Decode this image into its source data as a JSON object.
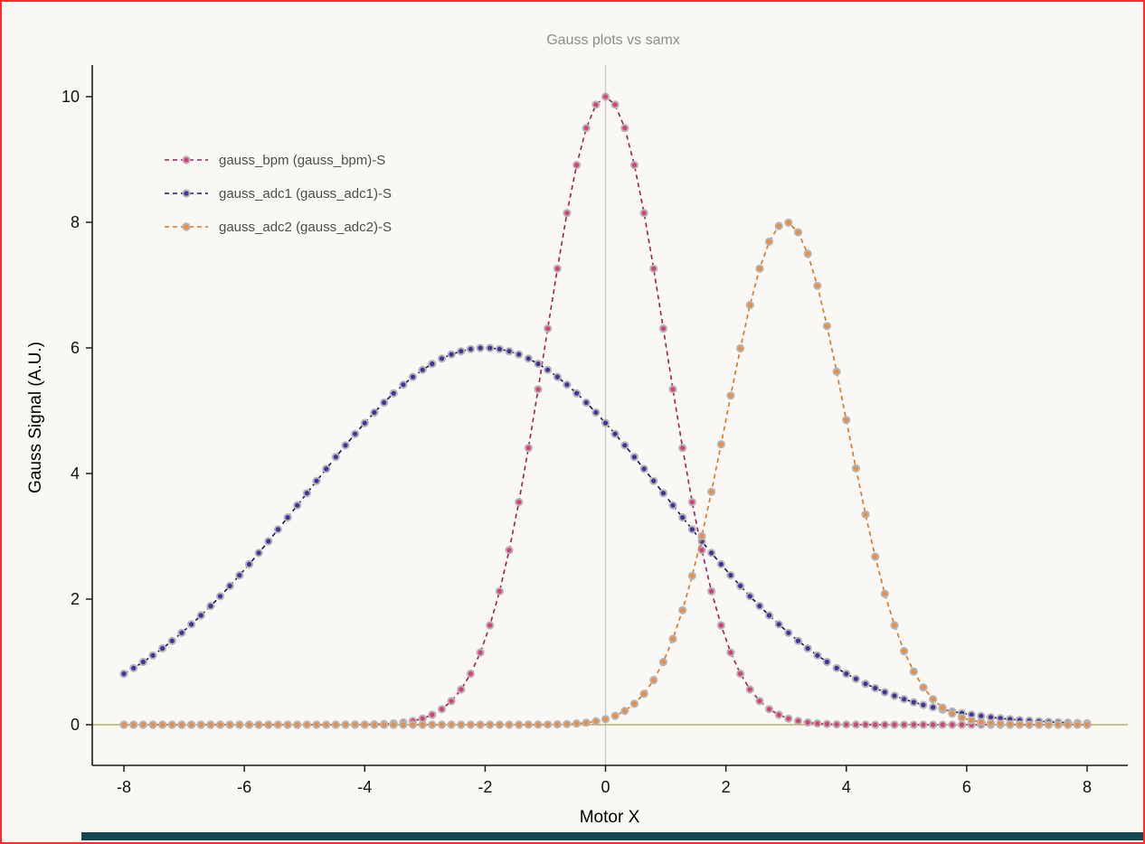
{
  "window": {
    "border_color": "#ff2d2d",
    "background": "#faf8f4",
    "bottom_bar_color": "#134850"
  },
  "chart_data": {
    "type": "scatter",
    "title": "Gauss plots vs samx",
    "xlabel": "Motor X",
    "ylabel": "Gauss Signal (A.U.)",
    "x_range": [
      -8,
      8
    ],
    "n_points": 101,
    "x_ticks": [
      -8,
      -6,
      -4,
      -2,
      0,
      2,
      4,
      6,
      8
    ],
    "y_ticks": [
      0,
      2,
      4,
      6,
      8,
      10
    ],
    "ylim": [
      0,
      10
    ],
    "grid": {
      "vline_x": 0,
      "vline_color": "#cccccc",
      "hline_y": 0,
      "hline_color": "#b3b360"
    },
    "axis_color": "#1a1a1a",
    "tick_label_color": "#111111",
    "title_color": "#8c8c8c",
    "legend_position": "upper-left",
    "legend_text_color": "#4d4d4d",
    "marker_edge_color": "#b5b5b5",
    "series": [
      {
        "name": "gauss_bpm (gauss_bpm)-S",
        "center": 0,
        "sigma": 1,
        "amplitude": 10,
        "marker_color": "#dd3d77",
        "line_color": "#a11a5b"
      },
      {
        "name": "gauss_adc1 (gauss_adc1)-S",
        "center": -2,
        "sigma": 3,
        "amplitude": 6,
        "marker_color": "#46309e",
        "line_color": "#17155e"
      },
      {
        "name": "gauss_adc2 (gauss_adc2)-S",
        "center": 3,
        "sigma": 1,
        "amplitude": 8,
        "marker_color": "#ef8b3f",
        "line_color": "#dd731d"
      }
    ]
  }
}
